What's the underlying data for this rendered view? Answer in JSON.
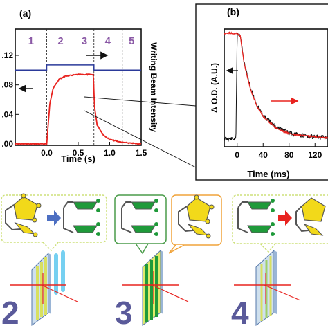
{
  "panel_a": {
    "label": "(a)",
    "xlabel": "Time (s)",
    "right_label": "Writing Beam Intensity",
    "x_ticks": [
      "0.0",
      "0.5",
      "1.0",
      "1.5"
    ],
    "y_ticks": [
      ".12",
      ".08",
      ".04",
      ".00"
    ],
    "stages": [
      "1",
      "2",
      "3",
      "4",
      "5"
    ]
  },
  "panel_b": {
    "label": "(b)",
    "xlabel": "Time (ms)",
    "ylabel": "Δ O.D. (A.U.)",
    "x_ticks": [
      "0",
      "40",
      "80",
      "120"
    ]
  },
  "steps": [
    "2",
    "3",
    "4"
  ],
  "colors": {
    "red": "#e8231f",
    "blue": "#2b3a9a",
    "stage_purple": "#8b5aa6",
    "yellow": "#f2d91a",
    "green": "#1f9a3a",
    "arrow_blue": "#4d6fc2",
    "arrow_red": "#e8231f",
    "bubble_yellow": "#cde07a",
    "bubble_green": "#4a9c4a",
    "bubble_orange": "#f0a33a",
    "big_number": "#5a5a9a"
  },
  "chart_data": [
    {
      "type": "line",
      "panel": "(a)",
      "xlabel": "Time (s)",
      "ylabel": "",
      "xlim": [
        -0.5,
        1.5
      ],
      "ylim": [
        0.0,
        0.12
      ],
      "series": [
        {
          "x": [
            -0.5,
            0.0,
            0.05,
            0.1,
            0.2,
            0.3,
            0.5,
            0.74,
            0.76,
            0.8,
            0.9,
            1.0,
            1.2,
            1.5
          ],
          "values": [
            0.0,
            0.0,
            0.055,
            0.075,
            0.088,
            0.092,
            0.094,
            0.094,
            0.05,
            0.026,
            0.012,
            0.006,
            0.002,
            0.0
          ]
        },
        {
          "x": [
            -0.5,
            0.0,
            0.0,
            0.75,
            0.75,
            1.5
          ],
          "values": [
            0.1,
            0.1,
            0.107,
            0.107,
            0.1,
            0.1
          ]
        }
      ]
    },
    {
      "type": "line",
      "panel": "(b)",
      "xlabel": "Time (ms)",
      "ylabel": "Δ O.D. (A.U.)",
      "xlim": [
        -20,
        140
      ],
      "series": [
        {
          "x": [
            -20,
            -2,
            0,
            5,
            10,
            20,
            30,
            40,
            60,
            80,
            100,
            120,
            140
          ],
          "values": [
            0.02,
            0.02,
            1.0,
            0.98,
            0.75,
            0.5,
            0.34,
            0.24,
            0.13,
            0.08,
            0.05,
            0.04,
            0.03
          ]
        },
        {
          "x": [
            -20,
            0,
            5,
            10,
            20,
            30,
            40,
            60,
            80,
            100,
            120,
            140
          ],
          "values": [
            1.0,
            1.0,
            0.97,
            0.74,
            0.49,
            0.33,
            0.23,
            0.12,
            0.07,
            0.05,
            0.04,
            0.03
          ]
        }
      ]
    }
  ]
}
